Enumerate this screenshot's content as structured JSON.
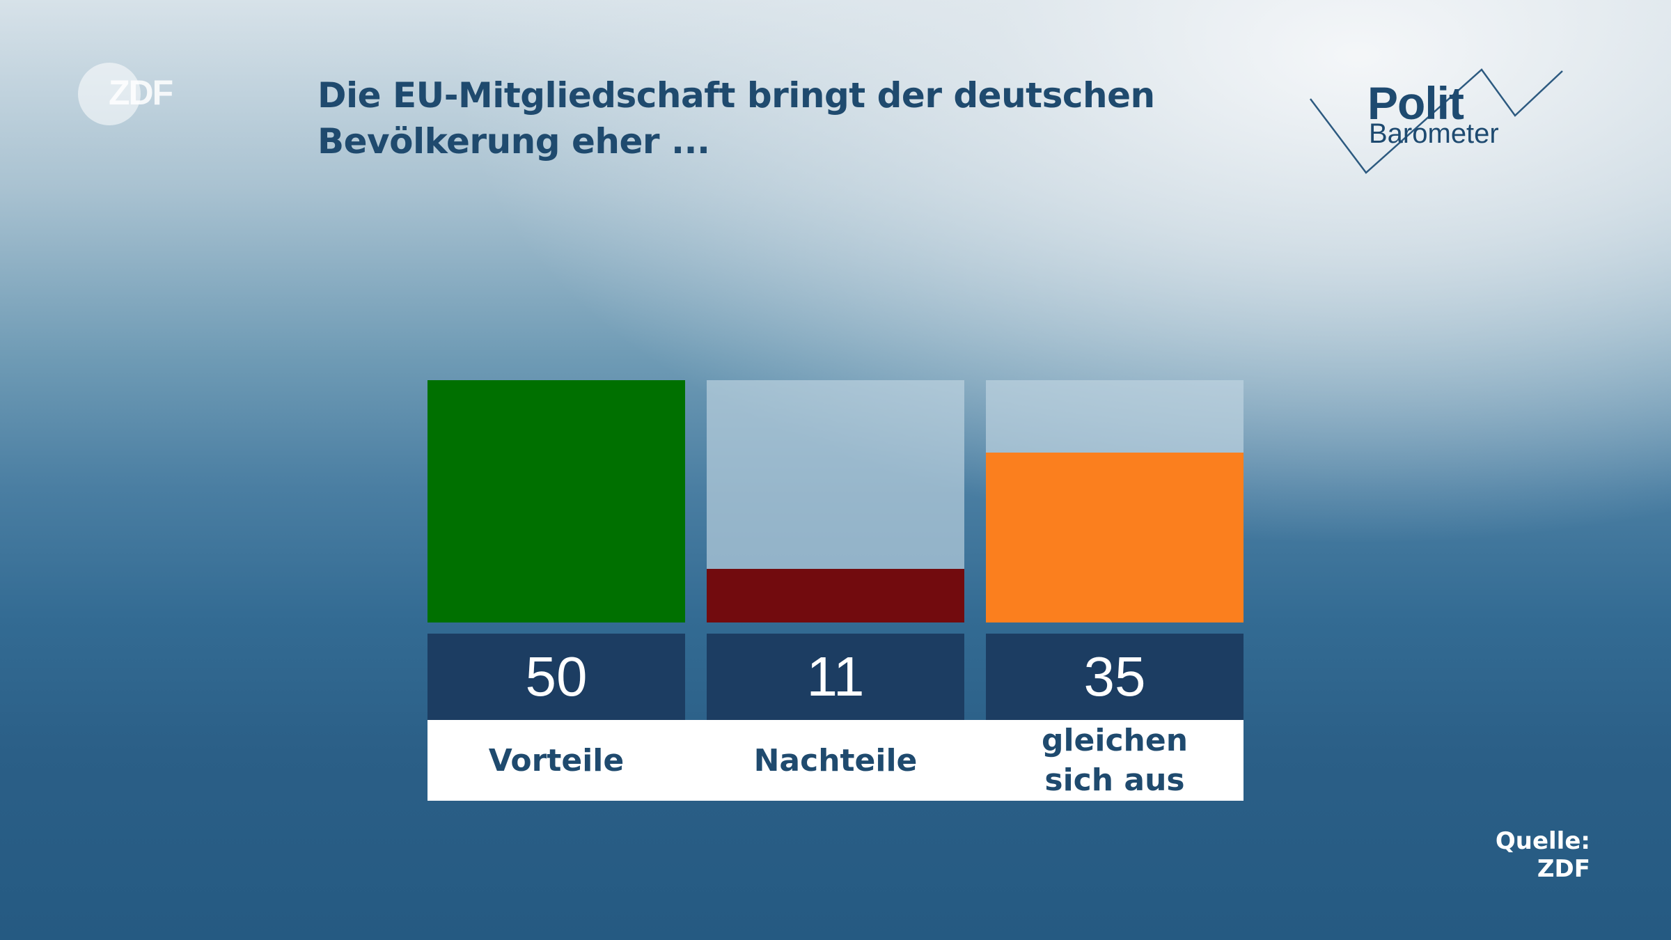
{
  "branding": {
    "broadcaster_logo": "ZDF",
    "program_logo_line1": "Polit",
    "program_logo_line2": "Barometer"
  },
  "title": "Die EU-Mitgliedschaft bringt der deutschen Bevölkerung eher ...",
  "source": "Quelle: ZDF",
  "chart_data": {
    "type": "bar",
    "title": "Die EU-Mitgliedschaft bringt der deutschen Bevölkerung eher ...",
    "categories": [
      "Vorteile",
      "Nachteile",
      "gleichen\nsich aus"
    ],
    "values": [
      50,
      11,
      35
    ],
    "value_labels": [
      "50",
      "11",
      "35"
    ],
    "colors": [
      "#007000",
      "#720b0e",
      "#fb7f1e"
    ],
    "track_color": "#c1d6e2",
    "ylim": [
      0,
      50
    ],
    "grid": false,
    "legend": "none"
  }
}
